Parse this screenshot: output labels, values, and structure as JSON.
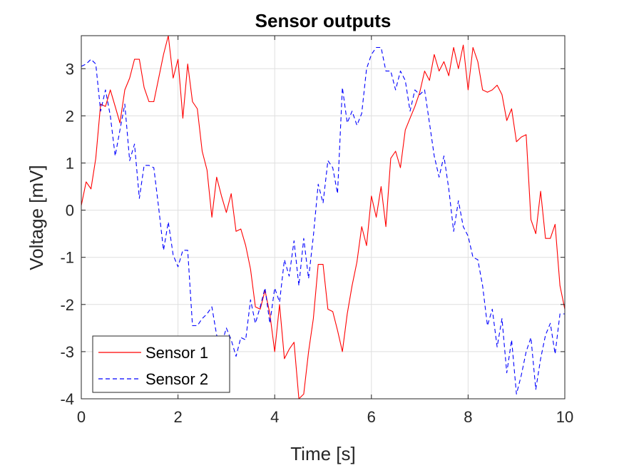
{
  "chart_data": {
    "type": "line",
    "title": "Sensor outputs",
    "xlabel": "Time [s]",
    "ylabel": "Voltage [mV]",
    "xlim": [
      0,
      10
    ],
    "ylim": [
      -4,
      3.7
    ],
    "xticks": [
      0,
      2,
      4,
      6,
      8,
      10
    ],
    "yticks": [
      -4,
      -3,
      -2,
      -1,
      0,
      1,
      2,
      3
    ],
    "grid": true,
    "legend_position": "bottom-left",
    "x": [
      0,
      0.1,
      0.2,
      0.3,
      0.4,
      0.5,
      0.6,
      0.7,
      0.8,
      0.9,
      1.0,
      1.1,
      1.2,
      1.3,
      1.4,
      1.5,
      1.6,
      1.7,
      1.8,
      1.9,
      2.0,
      2.1,
      2.2,
      2.3,
      2.4,
      2.5,
      2.6,
      2.7,
      2.8,
      2.9,
      3.0,
      3.1,
      3.2,
      3.3,
      3.4,
      3.5,
      3.6,
      3.7,
      3.8,
      3.9,
      4.0,
      4.1,
      4.2,
      4.3,
      4.4,
      4.5,
      4.6,
      4.7,
      4.8,
      4.9,
      5.0,
      5.1,
      5.2,
      5.3,
      5.4,
      5.5,
      5.6,
      5.7,
      5.8,
      5.9,
      6.0,
      6.1,
      6.2,
      6.3,
      6.4,
      6.5,
      6.6,
      6.7,
      6.8,
      6.9,
      7.0,
      7.1,
      7.2,
      7.3,
      7.4,
      7.5,
      7.6,
      7.7,
      7.8,
      7.9,
      8.0,
      8.1,
      8.2,
      8.3,
      8.4,
      8.5,
      8.6,
      8.7,
      8.8,
      8.9,
      9.0,
      9.1,
      9.2,
      9.3,
      9.4,
      9.5,
      9.6,
      9.7,
      9.8,
      9.9,
      10.0
    ],
    "series": [
      {
        "name": "Sensor 1",
        "color": "#ff0000",
        "dash": "solid",
        "values": [
          0.1,
          0.6,
          0.45,
          1.1,
          2.25,
          2.2,
          2.55,
          2.2,
          1.85,
          2.55,
          2.8,
          3.2,
          3.2,
          2.6,
          2.3,
          2.3,
          2.8,
          3.3,
          3.7,
          2.8,
          3.2,
          1.95,
          3.1,
          2.3,
          2.15,
          1.25,
          0.85,
          -0.15,
          0.7,
          0.3,
          -0.05,
          0.35,
          -0.45,
          -0.4,
          -0.75,
          -1.25,
          -2.05,
          -2.1,
          -1.7,
          -2.2,
          -3.0,
          -2.0,
          -3.15,
          -2.95,
          -2.8,
          -4.0,
          -3.9,
          -3.0,
          -2.3,
          -1.15,
          -1.15,
          -2.1,
          -2.15,
          -2.55,
          -3.0,
          -2.2,
          -1.6,
          -1.1,
          -0.35,
          -0.75,
          0.3,
          -0.15,
          0.5,
          -0.35,
          1.1,
          1.25,
          0.9,
          1.7,
          1.95,
          2.2,
          2.5,
          2.95,
          2.75,
          3.3,
          2.95,
          3.15,
          2.85,
          3.45,
          3.0,
          3.5,
          2.55,
          3.45,
          3.15,
          2.55,
          2.5,
          2.55,
          2.65,
          2.45,
          1.9,
          2.15,
          1.45,
          1.55,
          1.6,
          -0.2,
          -0.5,
          0.4,
          -0.6,
          -0.6,
          -0.3,
          -1.6,
          -2.1
        ]
      },
      {
        "name": "Sensor 2",
        "color": "#0000ff",
        "dash": "dashed",
        "values": [
          3.05,
          3.1,
          3.2,
          3.1,
          2.1,
          2.55,
          2.0,
          1.15,
          1.7,
          2.25,
          1.05,
          1.4,
          0.25,
          0.95,
          0.95,
          0.9,
          0.05,
          -0.85,
          -0.25,
          -0.95,
          -1.2,
          -0.85,
          -0.85,
          -2.45,
          -2.45,
          -2.3,
          -2.2,
          -2.05,
          -2.65,
          -2.85,
          -2.5,
          -2.75,
          -3.1,
          -2.7,
          -2.75,
          -1.9,
          -2.4,
          -2.05,
          -1.65,
          -2.4,
          -1.65,
          -1.95,
          -1.05,
          -1.4,
          -0.65,
          -1.6,
          -0.6,
          -1.45,
          -0.55,
          0.55,
          0.15,
          1.05,
          0.9,
          0.35,
          2.6,
          1.85,
          2.1,
          1.8,
          2.05,
          3.0,
          3.3,
          3.45,
          3.45,
          2.95,
          2.95,
          2.55,
          2.95,
          2.75,
          2.1,
          2.55,
          2.45,
          2.55,
          1.85,
          1.15,
          0.7,
          1.15,
          0.45,
          -0.45,
          0.2,
          -0.35,
          -0.55,
          -1.0,
          -1.05,
          -1.6,
          -2.45,
          -2.1,
          -2.9,
          -2.3,
          -3.45,
          -2.75,
          -3.9,
          -3.5,
          -3.0,
          -2.7,
          -3.8,
          -3.15,
          -2.65,
          -2.4,
          -3.05,
          -2.2,
          -2.2
        ]
      }
    ]
  }
}
